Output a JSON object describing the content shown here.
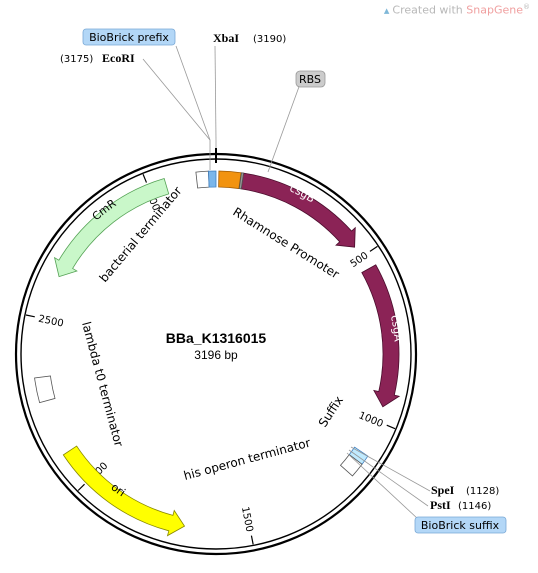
{
  "watermark": {
    "prefix": "Created with",
    "brand": "SnapGene",
    "mark": "®"
  },
  "plasmid": {
    "name": "BBa_K1316015",
    "length_label": "3196 bp",
    "total_bp": 3196
  },
  "colors": {
    "backbone": "#000000",
    "csgB": "#8b2356",
    "csgA": "#8b2356",
    "cmr": "#c9f7c9",
    "ori": "#ffff00",
    "rhamnose_promoter": "#f2930f",
    "rbs": "#999999",
    "suffix": "#bfeaff",
    "prefix_box": "#7ab6ea",
    "label_gray": "#cccccc"
  },
  "ticks": [
    {
      "bp": 500,
      "label": "500"
    },
    {
      "bp": 1000,
      "label": "1000"
    },
    {
      "bp": 1500,
      "label": "1500"
    },
    {
      "bp": 2000,
      "label": "2000"
    },
    {
      "bp": 2500,
      "label": "2500"
    },
    {
      "bp": 3000,
      "label": "3000"
    }
  ],
  "features": [
    {
      "id": "csgB",
      "label": "csgB",
      "type": "arrow",
      "start": 77,
      "end": 465,
      "strand": 1,
      "color": "#8b2356",
      "label_color": "#ffffff"
    },
    {
      "id": "csgA",
      "label": "csgA",
      "type": "arrow",
      "start": 540,
      "end": 955,
      "strand": 1,
      "color": "#8b2356",
      "label_color": "#ffffff"
    },
    {
      "id": "ori",
      "label": "ori",
      "type": "arrow",
      "start": 1690,
      "end": 2100,
      "strand": -1,
      "color": "#ffff00",
      "label_color": "#000000"
    },
    {
      "id": "cmr",
      "label": "CmR",
      "type": "arrow",
      "start": 2630,
      "end": 3050,
      "strand": -1,
      "color": "#c9f7c9",
      "label_color": "#000000"
    },
    {
      "id": "rhamnose",
      "label": "Rhamnose Promoter",
      "type": "box",
      "start": 8,
      "end": 70,
      "color": "#f2930f"
    },
    {
      "id": "rbs",
      "label": "RBS",
      "type": "box",
      "start": 71,
      "end": 77,
      "color": "#999999"
    },
    {
      "id": "bact_term",
      "label": "bacterial terminator",
      "type": "box",
      "start": 3140,
      "end": 3175,
      "color": "#ffffff"
    },
    {
      "id": "prefix_site",
      "label": "",
      "type": "box",
      "start": 3175,
      "end": 3196,
      "color": "#7ab6ea"
    },
    {
      "id": "suffix",
      "label": "Suffix",
      "type": "box",
      "start": 1100,
      "end": 1128,
      "color": "#bfeaff"
    },
    {
      "id": "his_term",
      "label": "his operon terminator",
      "type": "box",
      "start": 1128,
      "end": 1170,
      "color": "#ffffff"
    },
    {
      "id": "lambda_term",
      "label": "lambda t0 terminator",
      "type": "box",
      "start": 2260,
      "end": 2330,
      "color": "#ffffff"
    }
  ],
  "sites": [
    {
      "id": "xbai",
      "name": "XbaI",
      "pos_label": "(3190)",
      "bp": 3190
    },
    {
      "id": "ecori",
      "name": "EcoRI",
      "pos_label": "(3175)",
      "bp": 3175
    },
    {
      "id": "spei",
      "name": "SpeI",
      "pos_label": "(1128)",
      "bp": 1128
    },
    {
      "id": "psti",
      "name": "PstI",
      "pos_label": "(1146)",
      "bp": 1146
    }
  ],
  "callouts": [
    {
      "id": "biobrick_prefix",
      "text": "BioBrick prefix",
      "color": "#b3d7f7"
    },
    {
      "id": "biobrick_suffix",
      "text": "BioBrick suffix",
      "color": "#b3d7f7"
    },
    {
      "id": "rbs",
      "text": "RBS",
      "color": "#cccccc"
    }
  ]
}
